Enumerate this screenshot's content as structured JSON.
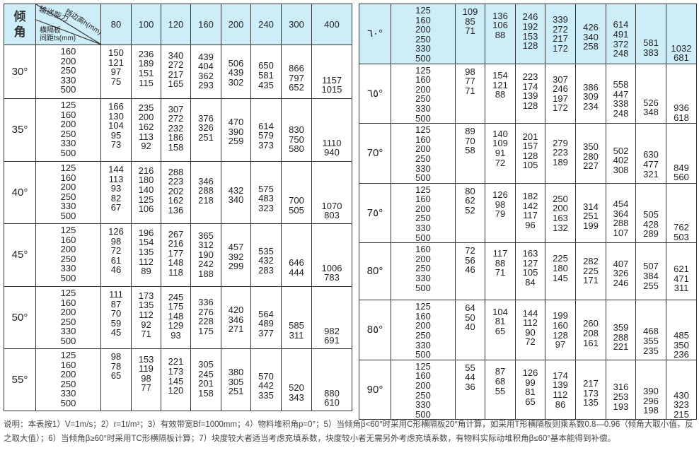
{
  "header": {
    "angle_label": "倾角",
    "capacity_label": "输送能力",
    "height_label": "挡边高h(mm)",
    "spacing_label_1": "横隔板",
    "spacing_label_2": "间距ts(mm)",
    "columns": [
      "80",
      "100",
      "120",
      "160",
      "200",
      "240",
      "300",
      "400"
    ]
  },
  "accent_color": "#cdeef9",
  "left_table": [
    {
      "angle": "30°",
      "ts": [
        "160",
        "200",
        "250",
        "330",
        "500"
      ],
      "cells": [
        [
          "150",
          "121",
          "97",
          "75"
        ],
        [
          "236",
          "189",
          "151",
          "115"
        ],
        [
          "340",
          "272",
          "217",
          "165"
        ],
        [
          "439",
          "404",
          "362",
          "293"
        ],
        [
          "506",
          "439",
          "302"
        ],
        [
          "650",
          "581",
          "435"
        ],
        [
          "866",
          "797",
          "652"
        ],
        [
          "1157",
          "1015"
        ]
      ]
    },
    {
      "angle": "35°",
      "ts": [
        "125",
        "160",
        "200",
        "250",
        "330",
        "500"
      ],
      "cells": [
        [
          "166",
          "130",
          "104",
          "95",
          "73"
        ],
        [
          "235",
          "200",
          "162",
          "113",
          "92"
        ],
        [
          "307",
          "272",
          "232",
          "186",
          "158"
        ],
        [
          "376",
          "326",
          "251"
        ],
        [
          "470",
          "390",
          "259"
        ],
        [
          "614",
          "579",
          "373"
        ],
        [
          "830",
          "750",
          "580"
        ],
        [
          "1110",
          "940"
        ]
      ]
    },
    {
      "angle": "40°",
      "ts": [
        "125",
        "160",
        "200",
        "250",
        "330",
        "500"
      ],
      "cells": [
        [
          "144",
          "113",
          "93",
          "82",
          "67"
        ],
        [
          "216",
          "180",
          "140",
          "125",
          "106"
        ],
        [
          "288",
          "223",
          "202",
          "162",
          "136"
        ],
        [
          "346",
          "288",
          "218"
        ],
        [
          "432",
          "340"
        ],
        [
          "575",
          "483",
          "323"
        ],
        [
          "700",
          "505"
        ],
        [
          "1070",
          "803"
        ]
      ]
    },
    {
      "angle": "45°",
      "ts": [
        "125",
        "160",
        "200",
        "250",
        "330",
        "500"
      ],
      "cells": [
        [
          "126",
          "98",
          "72",
          "61",
          "46"
        ],
        [
          "196",
          "154",
          "135",
          "112",
          "89"
        ],
        [
          "267",
          "216",
          "177",
          "148",
          "118"
        ],
        [
          "365",
          "312",
          "190",
          "242",
          "188"
        ],
        [
          "457",
          "392",
          "299"
        ],
        [
          "535",
          "432",
          "283"
        ],
        [
          "646",
          "444"
        ],
        [
          "1006",
          "783"
        ]
      ]
    },
    {
      "angle": "50°",
      "ts": [
        "125",
        "160",
        "200",
        "250",
        "330",
        "500"
      ],
      "cells": [
        [
          "111",
          "87",
          "70",
          "59",
          "45"
        ],
        [
          "173",
          "135",
          "112",
          "92",
          "71"
        ],
        [
          "245",
          "175",
          "148",
          "129",
          "93"
        ],
        [
          "336",
          "276",
          "228",
          "175"
        ],
        [
          "420",
          "346",
          "271"
        ],
        [
          "564",
          "489",
          "377"
        ],
        [
          "585",
          "311"
        ],
        [
          "982",
          "691"
        ]
      ]
    },
    {
      "angle": "55°",
      "ts": [
        "125",
        "160",
        "200",
        "250",
        "330",
        "500"
      ],
      "cells": [
        [
          "98",
          "78",
          "65"
        ],
        [
          "153",
          "119",
          "98",
          "77"
        ],
        [
          "221",
          "173",
          "145",
          "120"
        ],
        [
          "305",
          "245",
          "201",
          "158"
        ],
        [
          "380",
          "305",
          "251"
        ],
        [
          "570",
          "442",
          "335"
        ],
        [
          "520",
          "343"
        ],
        [
          "880",
          "610"
        ]
      ]
    }
  ],
  "right_table": [
    {
      "angle": "٦٠°",
      "ts": [
        "125",
        "160",
        "200",
        "250",
        "330",
        "500"
      ],
      "cells": [
        [
          "109",
          "85",
          "71"
        ],
        [
          "136",
          "106",
          "88"
        ],
        [
          "246",
          "192",
          "153",
          "128"
        ],
        [
          "339",
          "272",
          "217",
          "172"
        ],
        [
          "426",
          "340",
          "258"
        ],
        [
          "614",
          "491",
          "372",
          "248"
        ],
        [
          "581",
          "383"
        ],
        [
          "1032",
          "681"
        ]
      ]
    },
    {
      "angle": "٦٥°",
      "ts": [
        "125",
        "160",
        "200",
        "250",
        "330",
        "500"
      ],
      "cells": [
        [
          "98",
          "77",
          "71"
        ],
        [
          "154",
          "121",
          "88"
        ],
        [
          "223",
          "174",
          "139",
          "128"
        ],
        [
          "307",
          "246",
          "197",
          "172"
        ],
        [
          "386",
          "309",
          "234"
        ],
        [
          "558",
          "447",
          "338",
          "248"
        ],
        [
          "526",
          "348"
        ],
        [
          "936",
          "618"
        ]
      ]
    },
    {
      "angle": "70°",
      "ts": [
        "125",
        "160",
        "200",
        "250",
        "330",
        "500"
      ],
      "cells": [
        [
          "89",
          "70",
          "58"
        ],
        [
          "140",
          "109",
          "91",
          "72"
        ],
        [
          "201",
          "157",
          "128",
          "105"
        ],
        [
          "279",
          "223",
          "189"
        ],
        [
          "350",
          "280",
          "227"
        ],
        [
          "502",
          "402",
          "308"
        ],
        [
          "630",
          "477",
          "321"
        ],
        [
          "849",
          "560"
        ]
      ]
    },
    {
      "angle": "7٥°",
      "ts": [
        "125",
        "160",
        "200",
        "250",
        "330",
        "500"
      ],
      "cells": [
        [
          "80",
          "62",
          "52"
        ],
        [
          "126",
          "98",
          "79"
        ],
        [
          "182",
          "142",
          "117",
          "96"
        ],
        [
          "250",
          "200",
          "163",
          "132"
        ],
        [
          "314",
          "251",
          "199"
        ],
        [
          "454",
          "364",
          "288",
          "107"
        ],
        [
          "505",
          "428",
          "289"
        ],
        [
          "762",
          "503"
        ]
      ]
    },
    {
      "angle": "80°",
      "ts": [
        "160",
        "200",
        "250",
        "330",
        "500"
      ],
      "cells": [
        [
          "72",
          "56",
          "46"
        ],
        [
          "117",
          "88",
          "71"
        ],
        [
          "163",
          "127",
          "105",
          "84"
        ],
        [
          "225",
          "180",
          "145"
        ],
        [
          "282",
          "225",
          "171"
        ],
        [
          "407",
          "326",
          "246"
        ],
        [
          "507",
          "384",
          "255"
        ],
        [
          "621",
          "471",
          "311"
        ]
      ]
    },
    {
      "angle": "8٥°",
      "ts": [
        "125",
        "160",
        "200",
        "250",
        "330",
        "500"
      ],
      "cells": [
        [
          "64",
          "50",
          "40"
        ],
        [
          "104",
          "81",
          "65"
        ],
        [
          "144",
          "112",
          "90",
          "72"
        ],
        [
          "199",
          "160",
          "128",
          "97"
        ],
        [
          "260",
          "208",
          "161"
        ],
        [
          "359",
          "288",
          "221"
        ],
        [
          "468",
          "355",
          "235"
        ],
        [
          "485",
          "350",
          "236"
        ]
      ]
    },
    {
      "angle": "90°",
      "ts": [
        "125",
        "160",
        "200",
        "250",
        "330",
        "500"
      ],
      "cells": [
        [
          "55",
          "44",
          "36"
        ],
        [
          "87",
          "68",
          "55"
        ],
        [
          "126",
          "99",
          "81",
          "65"
        ],
        [
          "174",
          "139",
          "112",
          "86"
        ],
        [
          "217",
          "173",
          "135"
        ],
        [
          "316",
          "253",
          "193"
        ],
        [
          "390",
          "296",
          "198"
        ],
        [
          "430",
          "323",
          "215"
        ]
      ]
    }
  ],
  "note": "说明：本表按1）V=1m/s；2）r=1t/m³；3）有效带宽Bf=1000mm；4）物料堆积角p=0°；5）当倾角β<60°时采用C形横隔板20°角计算，如采用T形横隔板则乘系数0.8—0.96（倾角大取小值，反之取大值）；6）当倾角β≥60°时采用TC形横隔板计算；7）块度较大者适当考虑充填系数，块度较小者无需另外考虑充填系数，有物料实际动堆积角β≤60°基本能得到补偿。"
}
